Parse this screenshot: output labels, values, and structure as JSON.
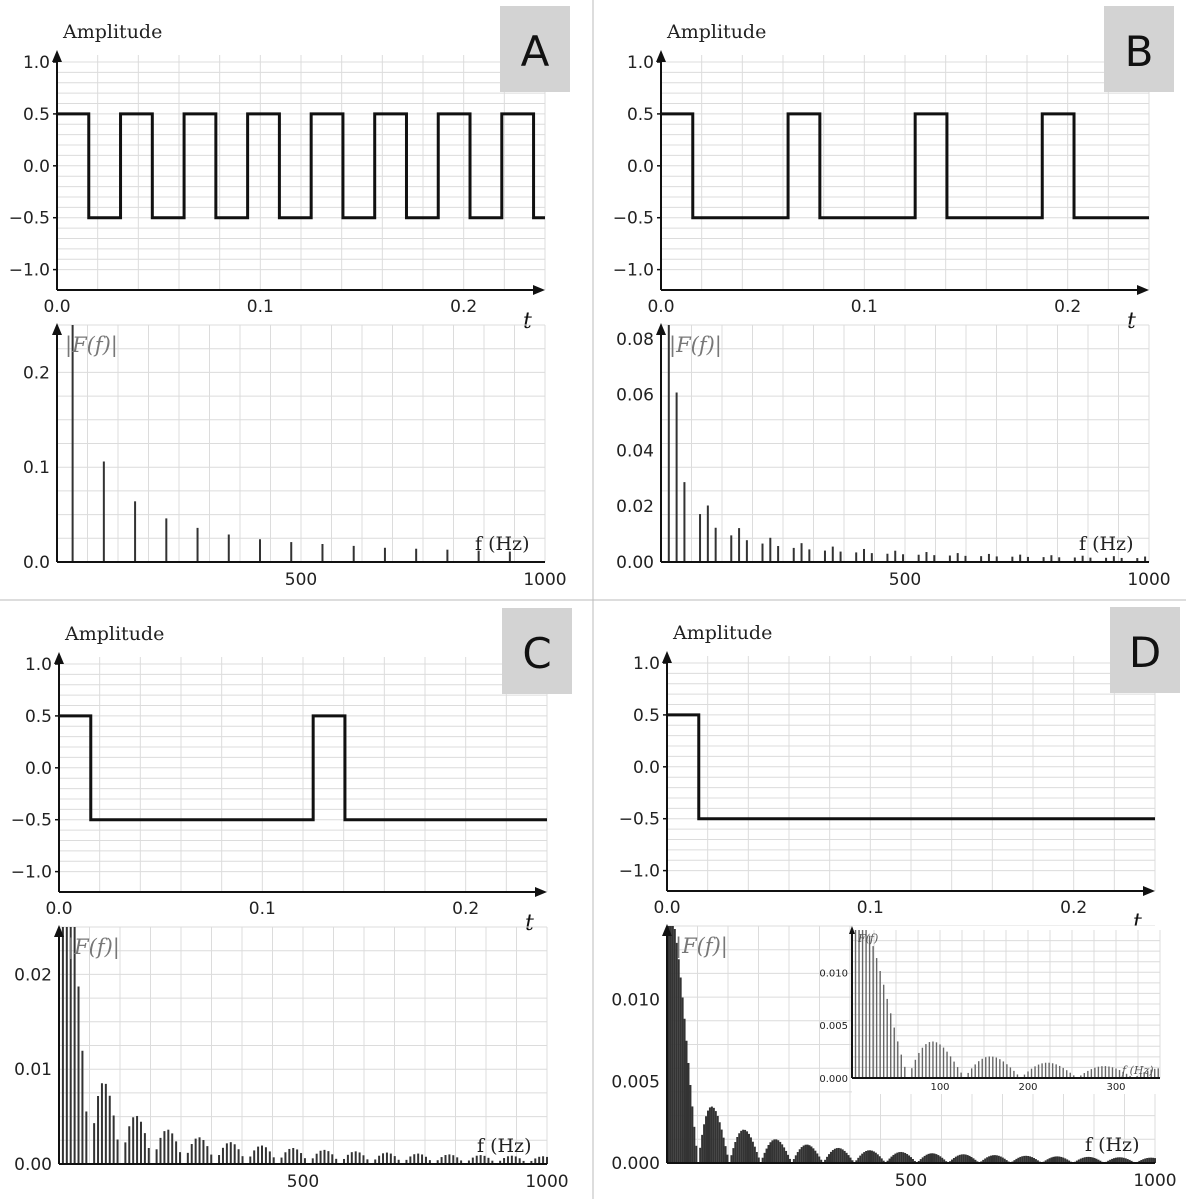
{
  "panels": [
    {
      "label": "A",
      "amp_title": "Amplitude",
      "t_label": "t",
      "spec_label": "|F(f)|",
      "hz_label": "f (Hz)"
    },
    {
      "label": "B",
      "amp_title": "Amplitude",
      "t_label": "t",
      "spec_label": "|F(f)|",
      "hz_label": "f (Hz)"
    },
    {
      "label": "C",
      "amp_title": "Amplitude",
      "t_label": "t",
      "spec_label": "|F(f)|",
      "hz_label": "f (Hz)"
    },
    {
      "label": "D",
      "amp_title": "Amplitude",
      "t_label": "t",
      "spec_label": "|F(f)|",
      "hz_label": "f (Hz)"
    }
  ],
  "chart_data": [
    {
      "type": "line",
      "panel": "A",
      "title": "",
      "ylabel": "Amplitude",
      "xlabel": "t",
      "xlim": [
        0,
        0.24
      ],
      "ylim": [
        -1.1,
        1.0
      ],
      "xticks": [
        "0.0",
        "0.1",
        "0.2"
      ],
      "yticks": [
        "1.0",
        "0.5",
        "0.0",
        "−0.5",
        "−1.0"
      ],
      "high": 0.5,
      "low": -0.5,
      "period": 0.03125,
      "pulse_width": 0.015625
    },
    {
      "type": "bar",
      "panel": "A",
      "ylabel": "|F(f)|",
      "xlabel": "f (Hz)",
      "xlim": [
        0,
        1000
      ],
      "ylim": [
        0,
        0.25
      ],
      "xticks": [
        "500",
        "1000"
      ],
      "yticks": [
        "0.2",
        "0.1",
        "0.0"
      ],
      "x": [
        32,
        96,
        160,
        224,
        288,
        352,
        416,
        480,
        544,
        608,
        672,
        736,
        800,
        864,
        928
      ],
      "values": [
        0.25,
        0.106,
        0.064,
        0.046,
        0.036,
        0.029,
        0.024,
        0.021,
        0.019,
        0.017,
        0.015,
        0.014,
        0.013,
        0.012,
        0.011
      ]
    },
    {
      "type": "line",
      "panel": "B",
      "title": "",
      "ylabel": "Amplitude",
      "xlabel": "t",
      "xlim": [
        0,
        0.24
      ],
      "ylim": [
        -1.1,
        1.0
      ],
      "xticks": [
        "0.0",
        "0.1",
        "0.2"
      ],
      "yticks": [
        "1.0",
        "0.5",
        "0.0",
        "−0.5",
        "−1.0"
      ],
      "high": 0.5,
      "low": -0.5,
      "period": 0.0625,
      "pulse_width": 0.015625
    },
    {
      "type": "bar",
      "panel": "B",
      "ylabel": "|F(f)|",
      "xlabel": "f (Hz)",
      "xlim": [
        0,
        1000
      ],
      "ylim": [
        0,
        0.085
      ],
      "xticks": [
        "500",
        "1000"
      ],
      "yticks": [
        "0.08",
        "0.06",
        "0.04",
        "0.02",
        "0.00"
      ],
      "fundamental_hz": 16,
      "duty": 0.25,
      "amplitude_scale": 0.0955
    },
    {
      "type": "line",
      "panel": "C",
      "title": "",
      "ylabel": "Amplitude",
      "xlabel": "t",
      "xlim": [
        0,
        0.24
      ],
      "ylim": [
        -1.1,
        1.0
      ],
      "xticks": [
        "0.0",
        "0.1",
        "0.2"
      ],
      "yticks": [
        "1.0",
        "0.5",
        "0.0",
        "−0.5",
        "−1.0"
      ],
      "high": 0.5,
      "low": -0.5,
      "period": 0.125,
      "pulse_width": 0.015625
    },
    {
      "type": "bar",
      "panel": "C",
      "ylabel": "|F(f)|",
      "xlabel": "f (Hz)",
      "xlim": [
        0,
        1000
      ],
      "ylim": [
        0,
        0.025
      ],
      "xticks": [
        "500",
        "1000"
      ],
      "yticks": [
        "0.02",
        "0.01",
        "0.00"
      ],
      "fundamental_hz": 8,
      "duty": 0.125,
      "amplitude_scale": 0.0398
    },
    {
      "type": "line",
      "panel": "D",
      "title": "",
      "ylabel": "Amplitude",
      "xlabel": "t",
      "xlim": [
        0,
        0.24
      ],
      "ylim": [
        -1.1,
        1.0
      ],
      "xticks": [
        "0.0",
        "0.1",
        "0.2"
      ],
      "yticks": [
        "1.0",
        "0.5",
        "0.0",
        "−0.5",
        "−1.0"
      ],
      "high": 0.5,
      "low": -0.5,
      "period": null,
      "pulse_width": 0.015625
    },
    {
      "type": "bar",
      "panel": "D",
      "ylabel": "|F(f)|",
      "xlabel": "f (Hz)",
      "xlim": [
        0,
        1000
      ],
      "ylim": [
        0,
        0.0145
      ],
      "xticks": [
        "500",
        "1000"
      ],
      "yticks": [
        "0.010",
        "0.005",
        "0.000"
      ],
      "fundamental_hz": 4,
      "duty": 0.0625,
      "amplitude_scale": 0.0159,
      "inset": {
        "xlim": [
          0,
          350
        ],
        "ylim": [
          0,
          0.014
        ],
        "xticks": [
          "100",
          "200",
          "300"
        ],
        "yticks": [
          "0.010",
          "0.005",
          "0.000"
        ],
        "ylabel": "F(f)",
        "xlabel": "f (Hz)"
      }
    }
  ]
}
